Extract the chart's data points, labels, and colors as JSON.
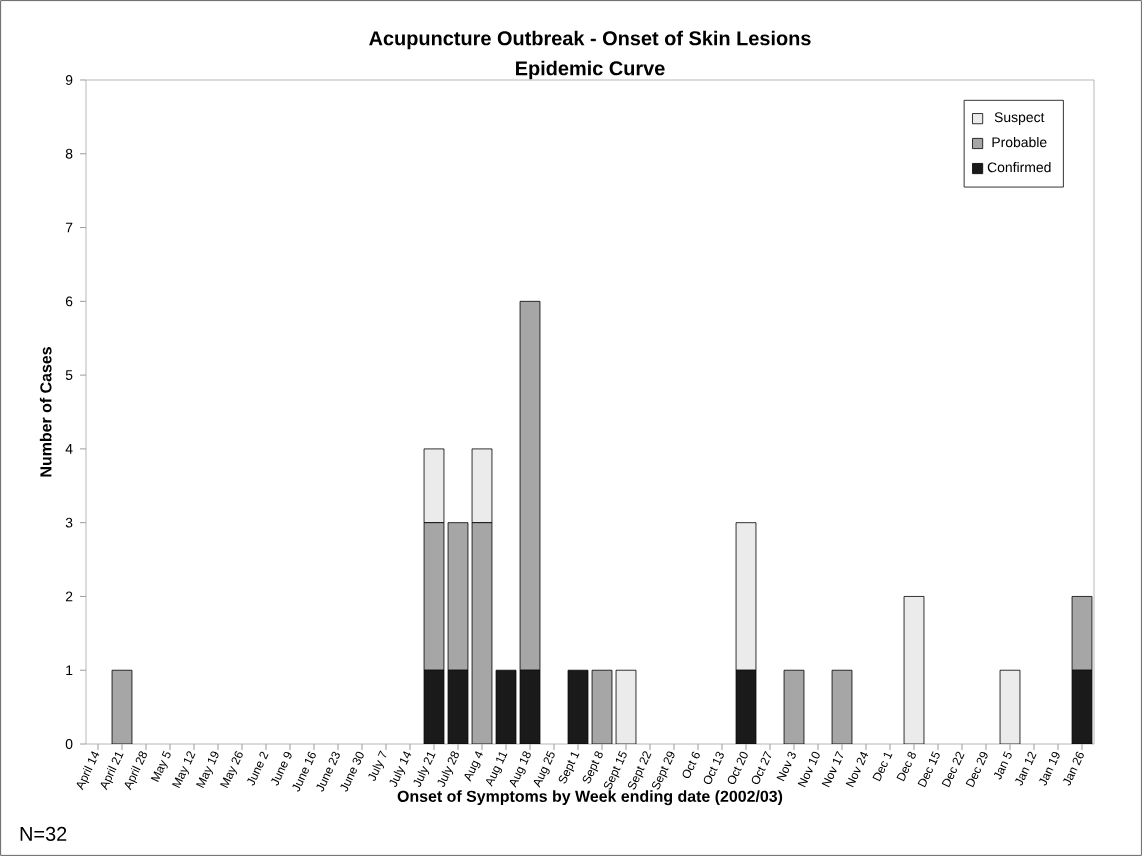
{
  "chart_data": {
    "type": "bar",
    "stacked": true,
    "title": "Acupuncture Outbreak - Onset of Skin Lesions",
    "subtitle": "Epidemic Curve",
    "xlabel": "Onset of Symptoms by Week ending date (2002/03)",
    "ylabel": "Number of Cases",
    "annotations": [
      "N=32"
    ],
    "categories": [
      "April 14",
      "April 21",
      "April 28",
      "May 5",
      "May 12",
      "May 19",
      "May 26",
      "June 2",
      "June 9",
      "June 16",
      "June 23",
      "June 30",
      "July 7",
      "July 14",
      "July 21",
      "July 28",
      "Aug 4",
      "Aug 11",
      "Aug 18",
      "Aug 25",
      "Sept 1",
      "Sept 8",
      "Sept 15",
      "Sept 22",
      "Sept 29",
      "Oct 6",
      "Oct 13",
      "Oct 20",
      "Oct 27",
      "Nov 3",
      "Nov 10",
      "Nov 17",
      "Nov 24",
      "Dec 1",
      "Dec 8",
      "Dec 15",
      "Dec 22",
      "Dec 29",
      "Jan 5",
      "Jan 12",
      "Jan 19",
      "Jan 26"
    ],
    "series": [
      {
        "name": "Confirmed",
        "color": "#1a1a1a",
        "values": [
          0,
          0,
          0,
          0,
          0,
          0,
          0,
          0,
          0,
          0,
          0,
          0,
          0,
          0,
          1,
          1,
          0,
          1,
          1,
          0,
          1,
          0,
          0,
          0,
          0,
          0,
          0,
          1,
          0,
          0,
          0,
          0,
          0,
          0,
          0,
          0,
          0,
          0,
          0,
          0,
          0,
          1
        ]
      },
      {
        "name": "Probable",
        "color": "#a6a6a6",
        "values": [
          0,
          1,
          0,
          0,
          0,
          0,
          0,
          0,
          0,
          0,
          0,
          0,
          0,
          0,
          2,
          2,
          3,
          0,
          5,
          0,
          0,
          1,
          0,
          0,
          0,
          0,
          0,
          0,
          0,
          1,
          0,
          1,
          0,
          0,
          0,
          0,
          0,
          0,
          0,
          0,
          0,
          1
        ]
      },
      {
        "name": "Suspect",
        "color": "#ebebeb",
        "values": [
          0,
          0,
          0,
          0,
          0,
          0,
          0,
          0,
          0,
          0,
          0,
          0,
          0,
          0,
          1,
          0,
          1,
          0,
          0,
          0,
          0,
          0,
          1,
          0,
          0,
          0,
          0,
          2,
          0,
          0,
          0,
          0,
          0,
          0,
          2,
          0,
          0,
          0,
          1,
          0,
          0,
          0
        ]
      }
    ],
    "ylim": [
      0,
      9
    ],
    "yticks": [
      0,
      1,
      2,
      3,
      4,
      5,
      6,
      7,
      8,
      9
    ],
    "grid": false,
    "legend": "top right"
  }
}
